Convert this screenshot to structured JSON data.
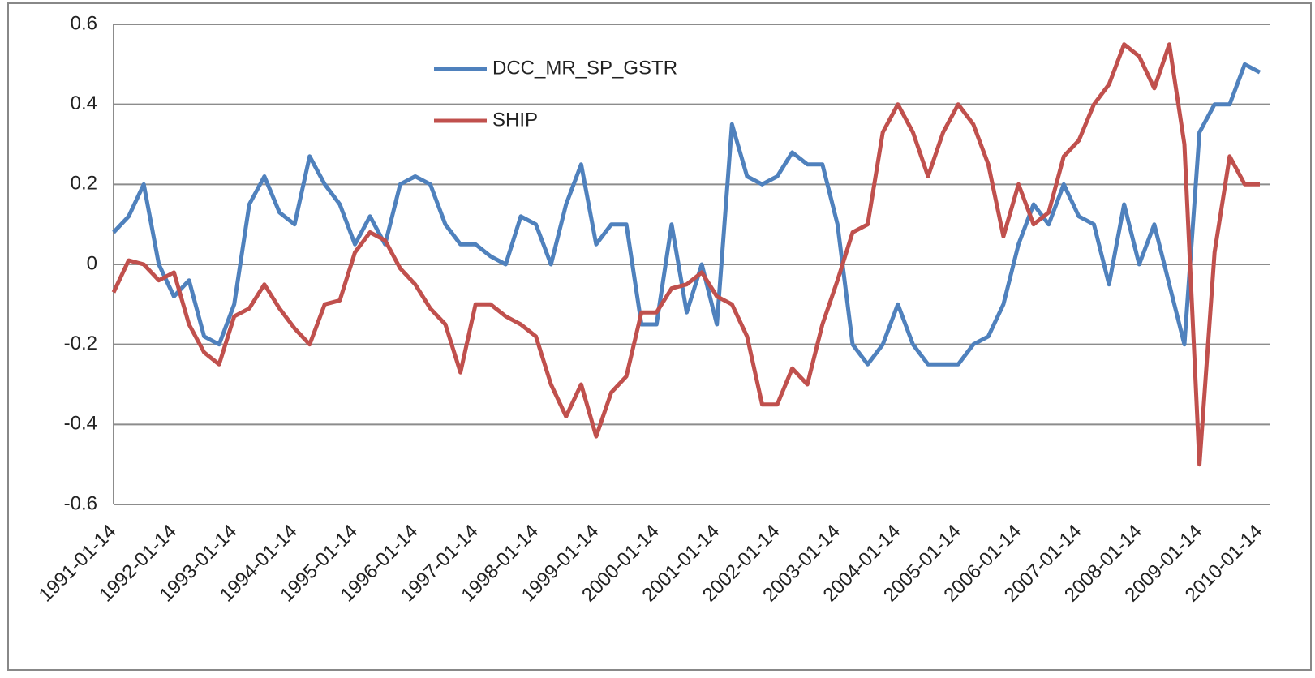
{
  "chart_data": {
    "type": "line",
    "categories": [
      "1991-01-14",
      null,
      null,
      null,
      "1992-01-14",
      null,
      null,
      null,
      "1993-01-14",
      null,
      null,
      null,
      "1994-01-14",
      null,
      null,
      null,
      "1995-01-14",
      null,
      null,
      null,
      "1996-01-14",
      null,
      null,
      null,
      "1997-01-14",
      null,
      null,
      null,
      "1998-01-14",
      null,
      null,
      null,
      "1999-01-14",
      null,
      null,
      null,
      "2000-01-14",
      null,
      null,
      null,
      "2001-01-14",
      null,
      null,
      null,
      "2002-01-14",
      null,
      null,
      null,
      "2003-01-14",
      null,
      null,
      null,
      "2004-01-14",
      null,
      null,
      null,
      "2005-01-14",
      null,
      null,
      null,
      "2006-01-14",
      null,
      null,
      null,
      "2007-01-14",
      null,
      null,
      null,
      "2008-01-14",
      null,
      null,
      null,
      "2009-01-14",
      null,
      null,
      null,
      "2010-01-14"
    ],
    "series": [
      {
        "name": "DCC_MR_SP_GSTR",
        "color": "#4f81bd",
        "values": [
          0.08,
          0.12,
          0.2,
          0.0,
          -0.08,
          -0.04,
          -0.18,
          -0.2,
          -0.1,
          0.15,
          0.22,
          0.13,
          0.1,
          0.27,
          0.2,
          0.15,
          0.05,
          0.12,
          0.05,
          0.2,
          0.22,
          0.2,
          0.1,
          0.05,
          0.05,
          0.02,
          0.0,
          0.12,
          0.1,
          0.0,
          0.15,
          0.25,
          0.05,
          0.1,
          0.1,
          -0.15,
          -0.15,
          0.1,
          -0.12,
          0.0,
          -0.15,
          0.35,
          0.22,
          0.2,
          0.22,
          0.28,
          0.25,
          0.25,
          0.1,
          -0.2,
          -0.25,
          -0.2,
          -0.1,
          -0.2,
          -0.25,
          -0.25,
          -0.25,
          -0.2,
          -0.18,
          -0.1,
          0.05,
          0.15,
          0.1,
          0.2,
          0.12,
          0.1,
          -0.05,
          0.15,
          0.0,
          0.1,
          -0.05,
          -0.2,
          0.33,
          0.4,
          0.4,
          0.5,
          0.48
        ]
      },
      {
        "name": "SHIP",
        "color": "#c0504d",
        "values": [
          -0.07,
          0.01,
          0.0,
          -0.04,
          -0.02,
          -0.15,
          -0.22,
          -0.25,
          -0.13,
          -0.11,
          -0.05,
          -0.11,
          -0.16,
          -0.2,
          -0.1,
          -0.09,
          0.03,
          0.08,
          0.06,
          -0.01,
          -0.05,
          -0.11,
          -0.15,
          -0.27,
          -0.1,
          -0.1,
          -0.13,
          -0.15,
          -0.18,
          -0.3,
          -0.38,
          -0.3,
          -0.43,
          -0.32,
          -0.28,
          -0.12,
          -0.12,
          -0.06,
          -0.05,
          -0.02,
          -0.08,
          -0.1,
          -0.18,
          -0.35,
          -0.35,
          -0.26,
          -0.3,
          -0.15,
          -0.04,
          0.08,
          0.1,
          0.33,
          0.4,
          0.33,
          0.22,
          0.33,
          0.4,
          0.35,
          0.25,
          0.07,
          0.2,
          0.1,
          0.13,
          0.27,
          0.31,
          0.4,
          0.45,
          0.55,
          0.52,
          0.44,
          0.55,
          0.3,
          -0.5,
          0.03,
          0.27,
          0.2,
          0.2
        ]
      }
    ],
    "ylim": [
      -0.6,
      0.6
    ],
    "yticks": [
      -0.6,
      -0.4,
      -0.2,
      0,
      0.2,
      0.4,
      0.6
    ],
    "grid": true,
    "legend": "upper center"
  }
}
